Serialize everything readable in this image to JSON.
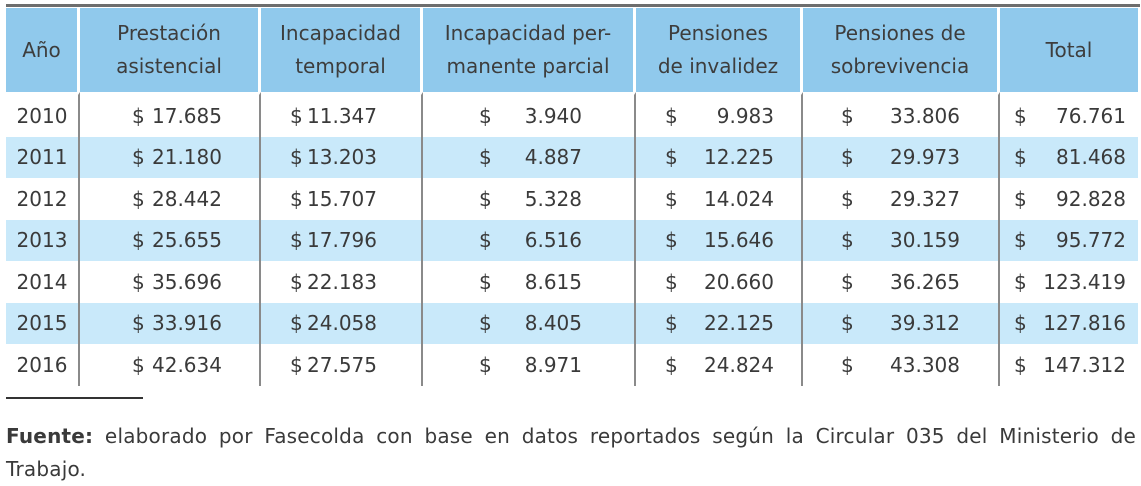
{
  "table": {
    "headers": [
      [
        "Año"
      ],
      [
        "Prestación",
        "asistencial"
      ],
      [
        "Incapacidad",
        "temporal"
      ],
      [
        "Incapacidad per-",
        "manente parcial"
      ],
      [
        "Pensiones",
        "de invalidez"
      ],
      [
        "Pensiones de",
        "sobrevivencia"
      ],
      [
        "Total"
      ]
    ],
    "currency": "$",
    "rows": [
      {
        "year": "2010",
        "values": [
          "17.685",
          "11.347",
          "3.940",
          "9.983",
          "33.806",
          "76.761"
        ]
      },
      {
        "year": "2011",
        "values": [
          "21.180",
          "13.203",
          "4.887",
          "12.225",
          "29.973",
          "81.468"
        ]
      },
      {
        "year": "2012",
        "values": [
          "28.442",
          "15.707",
          "5.328",
          "14.024",
          "29.327",
          "92.828"
        ]
      },
      {
        "year": "2013",
        "values": [
          "25.655",
          "17.796",
          "6.516",
          "15.646",
          "30.159",
          "95.772"
        ]
      },
      {
        "year": "2014",
        "values": [
          "35.696",
          "22.183",
          "8.615",
          "20.660",
          "36.265",
          "123.419"
        ]
      },
      {
        "year": "2015",
        "values": [
          "33.916",
          "24.058",
          "8.405",
          "22.125",
          "39.312",
          "127.816"
        ]
      },
      {
        "year": "2016",
        "values": [
          "42.634",
          "27.575",
          "8.971",
          "24.824",
          "43.308",
          "147.312"
        ]
      }
    ]
  },
  "footnote": {
    "label": "Fuente:",
    "text": " elaborado por Fasecolda con base en datos reportados según la Circular 035 del Ministerio de Trabajo."
  },
  "colors": {
    "header_bg": "#90c9ec",
    "alt_row_bg": "#c9e9fa"
  }
}
